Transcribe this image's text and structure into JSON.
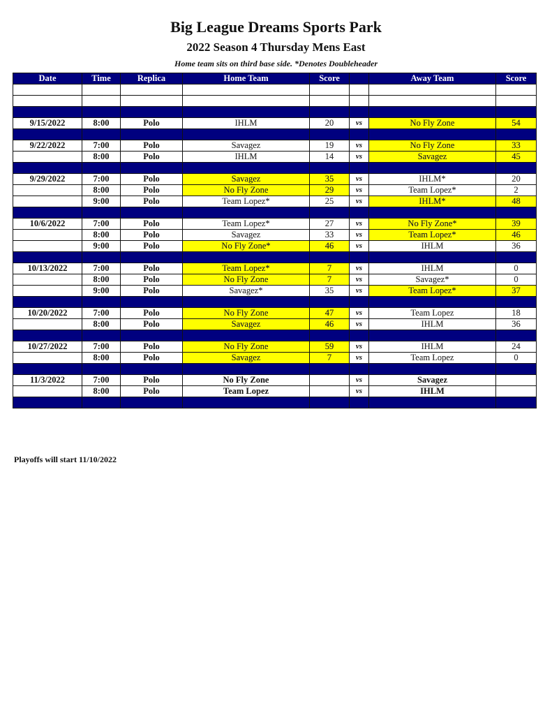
{
  "title": "Big League Dreams Sports Park",
  "subtitle": "2022 Season 4 Thursday Mens East",
  "note": "Home team sits on third base side.  *Denotes Doubleheader",
  "colors": {
    "header": "#00007f",
    "winner_highlight": "#ffff00"
  },
  "columns": [
    "Date",
    "Time",
    "Replica",
    "Home Team",
    "Score",
    "",
    "Away Team",
    "Score"
  ],
  "vs_label": "vs",
  "rows": [
    {
      "type": "blank"
    },
    {
      "type": "blank"
    },
    {
      "type": "sep"
    },
    {
      "type": "game",
      "date": "9/15/2022",
      "time": "8:00",
      "field": "Polo",
      "home": "IHLM",
      "home_score": "20",
      "away": "No Fly Zone",
      "away_score": "54",
      "winner": "away"
    },
    {
      "type": "sep"
    },
    {
      "type": "game",
      "date": "9/22/2022",
      "time": "7:00",
      "field": "Polo",
      "home": "Savagez",
      "home_score": "19",
      "away": "No Fly Zone",
      "away_score": "33",
      "winner": "away"
    },
    {
      "type": "game",
      "date": "",
      "time": "8:00",
      "field": "Polo",
      "home": "IHLM",
      "home_score": "14",
      "away": "Savagez",
      "away_score": "45",
      "winner": "away"
    },
    {
      "type": "sep"
    },
    {
      "type": "game",
      "date": "9/29/2022",
      "time": "7:00",
      "field": "Polo",
      "home": "Savagez",
      "home_score": "35",
      "away": "IHLM*",
      "away_score": "20",
      "winner": "home"
    },
    {
      "type": "game",
      "date": "",
      "time": "8:00",
      "field": "Polo",
      "home": "No Fly Zone",
      "home_score": "29",
      "away": "Team Lopez*",
      "away_score": "2",
      "winner": "home"
    },
    {
      "type": "game",
      "date": "",
      "time": "9:00",
      "field": "Polo",
      "home": "Team Lopez*",
      "home_score": "25",
      "away": "IHLM*",
      "away_score": "48",
      "winner": "away"
    },
    {
      "type": "sep"
    },
    {
      "type": "game",
      "date": "10/6/2022",
      "time": "7:00",
      "field": "Polo",
      "home": "Team Lopez*",
      "home_score": "27",
      "away": "No Fly Zone*",
      "away_score": "39",
      "winner": "away"
    },
    {
      "type": "game",
      "date": "",
      "time": "8:00",
      "field": "Polo",
      "home": "Savagez",
      "home_score": "33",
      "away": "Team Lopez*",
      "away_score": "46",
      "winner": "away"
    },
    {
      "type": "game",
      "date": "",
      "time": "9:00",
      "field": "Polo",
      "home": "No Fly Zone*",
      "home_score": "46",
      "away": "IHLM",
      "away_score": "36",
      "winner": "home"
    },
    {
      "type": "sep"
    },
    {
      "type": "game",
      "date": "10/13/2022",
      "time": "7:00",
      "field": "Polo",
      "home": "Team Lopez*",
      "home_score": "7",
      "away": "IHLM",
      "away_score": "0",
      "winner": "home"
    },
    {
      "type": "game",
      "date": "",
      "time": "8:00",
      "field": "Polo",
      "home": "No Fly Zone",
      "home_score": "7",
      "away": "Savagez*",
      "away_score": "0",
      "winner": "home"
    },
    {
      "type": "game",
      "date": "",
      "time": "9:00",
      "field": "Polo",
      "home": "Savagez*",
      "home_score": "35",
      "away": "Team Lopez*",
      "away_score": "37",
      "winner": "away"
    },
    {
      "type": "sep"
    },
    {
      "type": "game",
      "date": "10/20/2022",
      "time": "7:00",
      "field": "Polo",
      "home": "No Fly Zone",
      "home_score": "47",
      "away": "Team Lopez",
      "away_score": "18",
      "winner": "home"
    },
    {
      "type": "game",
      "date": "",
      "time": "8:00",
      "field": "Polo",
      "home": "Savagez",
      "home_score": "46",
      "away": "IHLM",
      "away_score": "36",
      "winner": "home"
    },
    {
      "type": "sep"
    },
    {
      "type": "game",
      "date": "10/27/2022",
      "time": "7:00",
      "field": "Polo",
      "home": "No Fly Zone",
      "home_score": "59",
      "away": "IHLM",
      "away_score": "24",
      "winner": "home"
    },
    {
      "type": "game",
      "date": "",
      "time": "8:00",
      "field": "Polo",
      "home": "Savagez",
      "home_score": "7",
      "away": "Team Lopez",
      "away_score": "0",
      "winner": "home"
    },
    {
      "type": "sep"
    },
    {
      "type": "game",
      "date": "11/3/2022",
      "time": "7:00",
      "field": "Polo",
      "home": "No Fly Zone",
      "home_score": "",
      "away": "Savagez",
      "away_score": "",
      "winner": ""
    },
    {
      "type": "game",
      "date": "",
      "time": "8:00",
      "field": "Polo",
      "home": "Team Lopez",
      "home_score": "",
      "away": "IHLM",
      "away_score": "",
      "winner": ""
    },
    {
      "type": "sep"
    }
  ],
  "footer": "Playoffs will start 11/10/2022"
}
